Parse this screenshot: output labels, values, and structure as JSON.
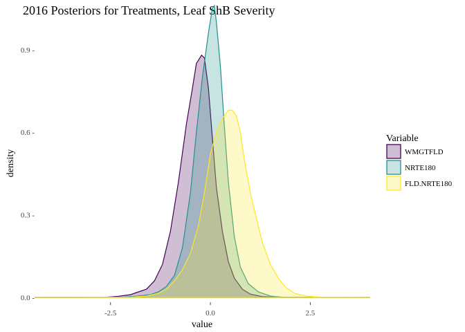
{
  "chart_data": {
    "type": "area",
    "title": "2016 Posteriors for Treatments, Leaf ShB Severity",
    "xlabel": "value",
    "ylabel": "density",
    "xlim": [
      -4.4,
      4.0
    ],
    "ylim": [
      0,
      1.0
    ],
    "x_ticks": [
      -2.5,
      0.0,
      2.5
    ],
    "x_tick_labels": [
      "-2.5",
      "0.0",
      "2.5"
    ],
    "y_ticks": [
      0.0,
      0.3,
      0.6,
      0.9
    ],
    "y_tick_labels": [
      "0.0 -",
      "0.3 -",
      "0.6 -",
      "0.9 -"
    ],
    "grid": false,
    "legend_position": "right",
    "legend_title": "Variable",
    "series": [
      {
        "name": "WMGTFLD",
        "color": "#440154",
        "fill": "#440154",
        "points": [
          [
            -4.4,
            0
          ],
          [
            -2.6,
            0.001
          ],
          [
            -2.3,
            0.004
          ],
          [
            -2.0,
            0.01
          ],
          [
            -1.8,
            0.02
          ],
          [
            -1.6,
            0.03
          ],
          [
            -1.4,
            0.06
          ],
          [
            -1.2,
            0.12
          ],
          [
            -1.0,
            0.24
          ],
          [
            -0.8,
            0.42
          ],
          [
            -0.6,
            0.63
          ],
          [
            -0.45,
            0.76
          ],
          [
            -0.35,
            0.85
          ],
          [
            -0.22,
            0.88
          ],
          [
            -0.15,
            0.87
          ],
          [
            -0.05,
            0.76
          ],
          [
            0.05,
            0.58
          ],
          [
            0.15,
            0.4
          ],
          [
            0.3,
            0.24
          ],
          [
            0.45,
            0.13
          ],
          [
            0.6,
            0.07
          ],
          [
            0.8,
            0.03
          ],
          [
            1.0,
            0.012
          ],
          [
            1.3,
            0.003
          ],
          [
            1.6,
            0.001
          ],
          [
            4.0,
            0
          ]
        ]
      },
      {
        "name": "NRTE180",
        "color": "#21908C",
        "fill": "#21908C",
        "points": [
          [
            -4.4,
            0
          ],
          [
            -2.2,
            0.001
          ],
          [
            -1.8,
            0.005
          ],
          [
            -1.5,
            0.01
          ],
          [
            -1.3,
            0.02
          ],
          [
            -1.1,
            0.04
          ],
          [
            -0.9,
            0.08
          ],
          [
            -0.7,
            0.18
          ],
          [
            -0.5,
            0.38
          ],
          [
            -0.35,
            0.6
          ],
          [
            -0.2,
            0.8
          ],
          [
            -0.05,
            0.96
          ],
          [
            0.05,
            1.05
          ],
          [
            0.1,
            1.06
          ],
          [
            0.15,
            1.0
          ],
          [
            0.25,
            0.84
          ],
          [
            0.35,
            0.62
          ],
          [
            0.45,
            0.42
          ],
          [
            0.6,
            0.22
          ],
          [
            0.75,
            0.11
          ],
          [
            0.95,
            0.05
          ],
          [
            1.2,
            0.02
          ],
          [
            1.5,
            0.005
          ],
          [
            1.8,
            0.001
          ],
          [
            4.0,
            0
          ]
        ]
      },
      {
        "name": "FLD.NRTE180",
        "color": "#FDE725",
        "fill": "#FDE725",
        "points": [
          [
            -4.4,
            0
          ],
          [
            -2.0,
            0.001
          ],
          [
            -1.6,
            0.005
          ],
          [
            -1.3,
            0.015
          ],
          [
            -1.1,
            0.03
          ],
          [
            -0.9,
            0.06
          ],
          [
            -0.7,
            0.1
          ],
          [
            -0.5,
            0.16
          ],
          [
            -0.3,
            0.26
          ],
          [
            -0.15,
            0.38
          ],
          [
            0.0,
            0.52
          ],
          [
            0.15,
            0.6
          ],
          [
            0.3,
            0.65
          ],
          [
            0.45,
            0.68
          ],
          [
            0.55,
            0.68
          ],
          [
            0.65,
            0.66
          ],
          [
            0.75,
            0.6
          ],
          [
            0.85,
            0.5
          ],
          [
            1.0,
            0.38
          ],
          [
            1.15,
            0.29
          ],
          [
            1.3,
            0.2
          ],
          [
            1.5,
            0.12
          ],
          [
            1.7,
            0.07
          ],
          [
            1.9,
            0.035
          ],
          [
            2.1,
            0.015
          ],
          [
            2.4,
            0.005
          ],
          [
            2.8,
            0.001
          ],
          [
            4.0,
            0
          ]
        ]
      }
    ]
  }
}
